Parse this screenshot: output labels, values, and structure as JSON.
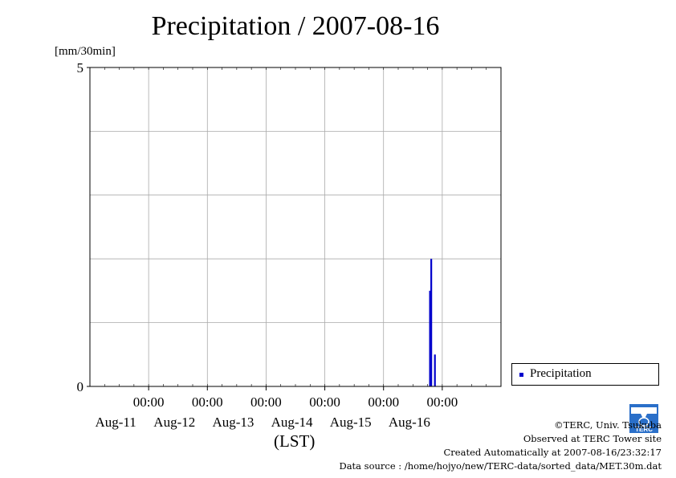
{
  "title": "Precipitation / 2007-08-16",
  "y_unit": "[mm/30min]",
  "x_unit": "(LST)",
  "legend": {
    "label": "Precipitation",
    "color": "#0000cc"
  },
  "footer": {
    "copyright": "©TERC, Univ. Tsukuba",
    "observed": "Observed at TERC Tower site",
    "created": "Created Automatically at 2007-08-16/23:32:17",
    "source": "Data source : /home/hojyo/new/TERC-data/sorted_data/MET.30m.dat"
  },
  "logo_icon": "terc-logo-icon",
  "chart_data": {
    "type": "bar",
    "title": "Precipitation / 2007-08-16",
    "ylabel": "[mm/30min]",
    "xlabel": "(LST)",
    "ylim": [
      0,
      5
    ],
    "y_ticks": [
      0,
      5
    ],
    "y_gridlines": [
      1,
      2,
      3,
      4
    ],
    "x_range_days": [
      -1.0,
      6.0
    ],
    "x_ticks": [
      {
        "time": "00:00",
        "date": "Aug-11"
      },
      {
        "time": "00:00",
        "date": "Aug-12"
      },
      {
        "time": "00:00",
        "date": "Aug-13"
      },
      {
        "time": "00:00",
        "date": "Aug-14"
      },
      {
        "time": "00:00",
        "date": "Aug-15"
      },
      {
        "time": "00:00",
        "date": "Aug-16"
      }
    ],
    "grid": true,
    "legend_position": "right",
    "series": [
      {
        "name": "Precipitation",
        "color": "#0000cc",
        "points": [
          {
            "t": "2007-08-15 19:00",
            "value": 1.5
          },
          {
            "t": "2007-08-15 19:30",
            "value": 2.0
          },
          {
            "t": "2007-08-15 21:00",
            "value": 0.5
          }
        ]
      }
    ]
  }
}
